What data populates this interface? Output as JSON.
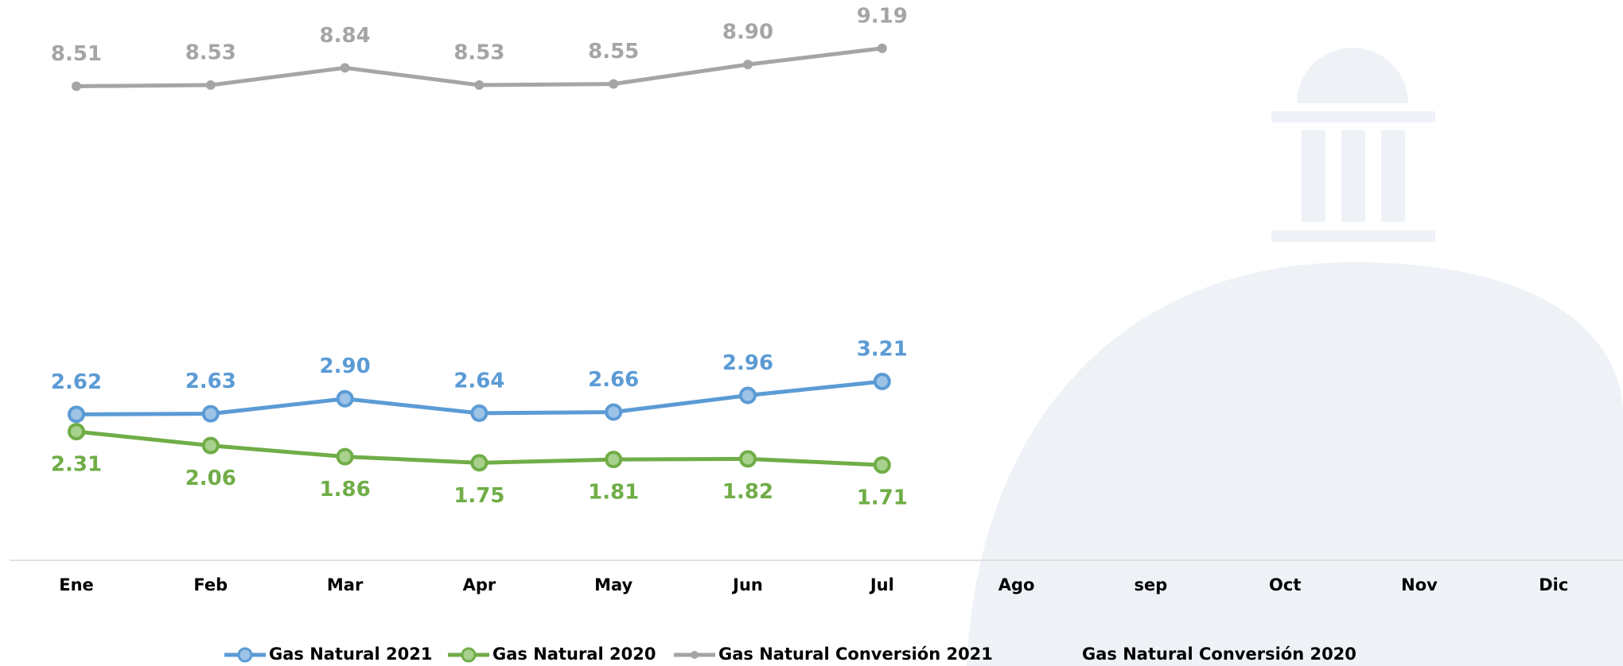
{
  "chart_data": {
    "type": "line",
    "categories": [
      "Ene",
      "Feb",
      "Mar",
      "Apr",
      "May",
      "Jun",
      "Jul",
      "Ago",
      "sep",
      "Oct",
      "Nov",
      "Dic"
    ],
    "ylim": [
      0,
      10
    ],
    "series": [
      {
        "name": "Gas Natural 2021",
        "color": "#5b9bd5",
        "values": [
          2.62,
          2.63,
          2.9,
          2.64,
          2.66,
          2.96,
          3.21,
          null,
          null,
          null,
          null,
          null
        ],
        "value_labels": [
          "2.62",
          "2.63",
          "2.90",
          "2.64",
          "2.66",
          "2.96",
          "3.21",
          null,
          null,
          null,
          null,
          null
        ]
      },
      {
        "name": "Gas Natural 2020",
        "color": "#70ad47",
        "values": [
          2.31,
          2.06,
          1.86,
          1.75,
          1.81,
          1.82,
          1.71,
          null,
          null,
          null,
          null,
          null
        ],
        "value_labels": [
          "2.31",
          "2.06",
          "1.86",
          "1.75",
          "1.81",
          "1.82",
          "1.71",
          null,
          null,
          null,
          null,
          null
        ]
      },
      {
        "name": "Gas Natural Conversión 2021",
        "color": "#a5a5a5",
        "values": [
          8.51,
          8.53,
          8.84,
          8.53,
          8.55,
          8.9,
          9.19,
          null,
          null,
          null,
          null,
          null
        ],
        "value_labels": [
          "8.51",
          "8.53",
          "8.84",
          "8.53",
          "8.55",
          "8.90",
          "9.19",
          null,
          null,
          null,
          null,
          null
        ]
      },
      {
        "name": "Gas Natural Conversión 2020",
        "values": [
          null,
          null,
          null,
          null,
          null,
          null,
          null,
          null,
          null,
          null,
          null,
          null
        ]
      }
    ]
  }
}
